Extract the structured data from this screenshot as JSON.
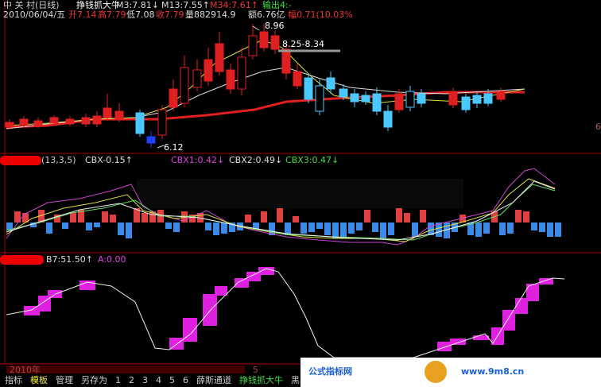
{
  "header": {
    "stock": "中 关 村(日线)",
    "formula": "挣钱抓大牛",
    "m3": "M3:7.81↓",
    "m13": "M13:7.55↑",
    "m34": "M34:7.61↑",
    "out4": "输出4:-"
  },
  "quote": {
    "date": "2010/06/04/五",
    "open": "开7.14",
    "high": "高7.79",
    "low": "低7.08",
    "close": "收7.79",
    "volume": "量882914.9",
    "amount": "额6.76亿",
    "change": "幅0.71(10.03%"
  },
  "annotations": {
    "peak": "8.96",
    "range": "8.25-8.34",
    "trough": "6.12",
    "edge": "6"
  },
  "panel2": {
    "params": "(13,3,5)",
    "cbx": "CBX-0.15↑",
    "cbx1": "CBX1:0.42↓",
    "cbx2": "CBX2:0.49↓",
    "cbx3": "CBX3:0.47↓"
  },
  "panel3": {
    "b7": "B7:51.50↑",
    "a": "A:0.00"
  },
  "footer": {
    "year": "2010年",
    "month": "5",
    "tabs": [
      "指标",
      "模板",
      "管理",
      "另存为",
      "1",
      "2",
      "3",
      "4",
      "5",
      "6",
      "薛斯通道",
      "挣钱抓大牛",
      "黑马图"
    ]
  },
  "watermark": {
    "site": "公式指标网",
    "url": "www.9m8.cn"
  }
}
